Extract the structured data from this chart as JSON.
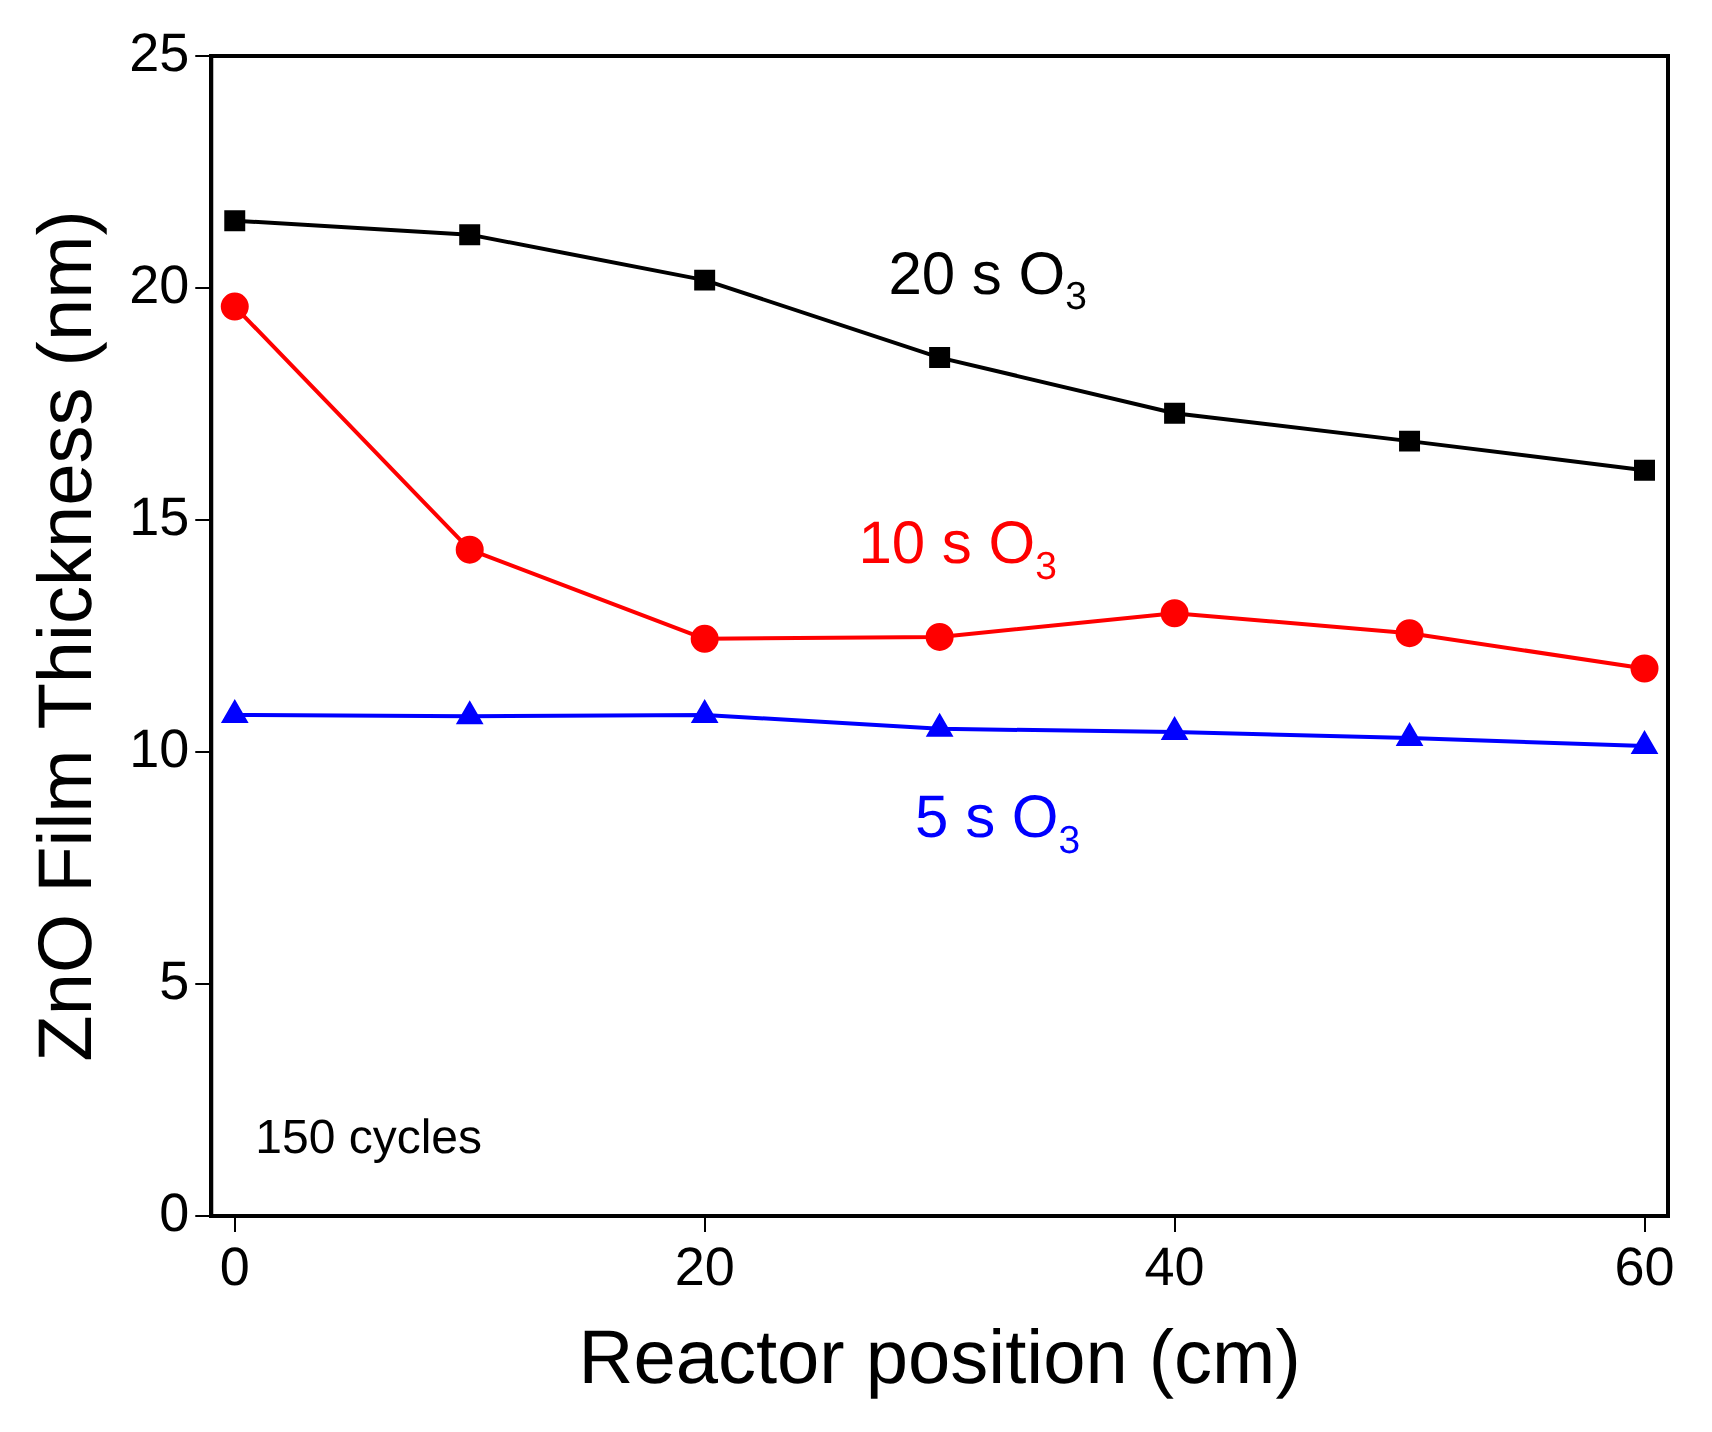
{
  "chart_data": {
    "type": "line",
    "xlabel": "Reactor position (cm)",
    "ylabel": "ZnO Film Thickness (nm)",
    "x": [
      0,
      10,
      20,
      30,
      40,
      50,
      60
    ],
    "series": [
      {
        "name": "20 s O$_{3}$",
        "color": "#000000",
        "marker": "square",
        "values": [
          21.45,
          21.15,
          20.17,
          18.5,
          17.3,
          16.7,
          16.07
        ]
      },
      {
        "name": "10 s O$_{3}$",
        "color": "#ff0000",
        "marker": "circle",
        "values": [
          19.6,
          14.36,
          12.44,
          12.48,
          12.99,
          12.56,
          11.8
        ]
      },
      {
        "name": "5 s O$_{3}$",
        "color": "#0000ff",
        "marker": "triangle",
        "values": [
          10.8,
          10.77,
          10.8,
          10.5,
          10.43,
          10.3,
          10.13
        ]
      }
    ],
    "xlim": [
      -1,
      61
    ],
    "xticks": [
      0,
      20,
      40,
      60
    ],
    "ylim": [
      0,
      25
    ],
    "yticks": [
      0,
      5,
      10,
      15,
      20,
      25
    ],
    "grid": false,
    "legend": false,
    "annotations": [
      "150 cycles"
    ]
  }
}
